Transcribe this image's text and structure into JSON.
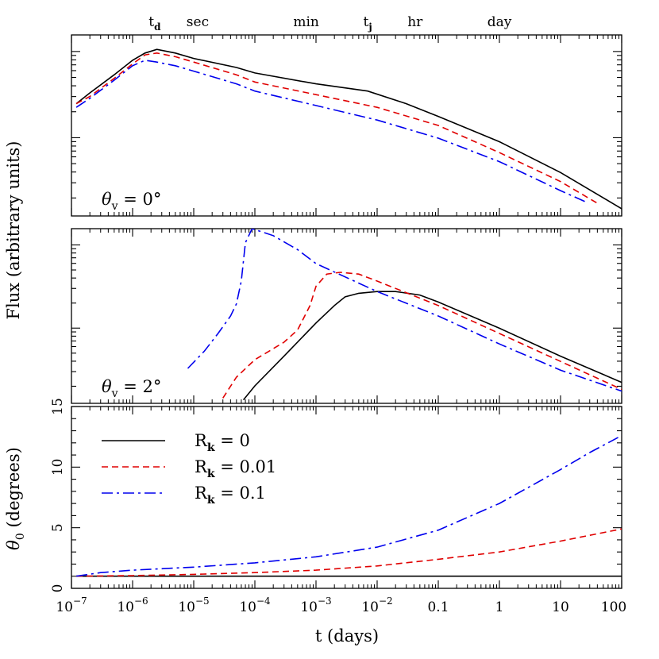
{
  "chart_data": [
    {
      "type": "line",
      "panel": "top",
      "annotation": {
        "theta_symbol": "θ",
        "subscript": "v",
        "text": " =  0°"
      },
      "yscale": "log",
      "ylabel_shared": "Flux (arbitrary units)",
      "xscale": "log",
      "xlim": [
        1e-07,
        100
      ],
      "series": [
        {
          "key": "rk0",
          "color": "#000000",
          "dash": "solid",
          "x": [
            1.2e-07,
            2e-07,
            5e-07,
            1e-06,
            1.6e-06,
            2.5e-06,
            5e-06,
            1e-05,
            5e-05,
            0.0001,
            0.001,
            0.007,
            0.03,
            0.1,
            1,
            10,
            100
          ],
          "y": [
            0.62,
            0.68,
            0.78,
            0.86,
            0.9,
            0.92,
            0.9,
            0.87,
            0.82,
            0.79,
            0.73,
            0.69,
            0.62,
            0.55,
            0.41,
            0.24,
            0.04
          ]
        },
        {
          "key": "rk001",
          "color": "#e00000",
          "dash": "dashed",
          "x": [
            1.2e-07,
            2e-07,
            5e-07,
            1e-06,
            1.6e-06,
            2.5e-06,
            5e-06,
            1e-05,
            5e-05,
            0.0001,
            0.001,
            0.01,
            0.1,
            1,
            10,
            40
          ],
          "y": [
            0.62,
            0.66,
            0.76,
            0.84,
            0.89,
            0.9,
            0.88,
            0.85,
            0.78,
            0.74,
            0.67,
            0.6,
            0.5,
            0.35,
            0.19,
            0.07
          ]
        },
        {
          "key": "rk01",
          "color": "#0000ee",
          "dash": "dashdot",
          "x": [
            1.2e-07,
            2e-07,
            5e-07,
            1e-06,
            1.6e-06,
            2.5e-06,
            5e-06,
            1e-05,
            5e-05,
            0.0001,
            0.001,
            0.01,
            0.1,
            1,
            10,
            25
          ],
          "y": [
            0.6,
            0.65,
            0.75,
            0.83,
            0.86,
            0.85,
            0.83,
            0.8,
            0.73,
            0.69,
            0.61,
            0.53,
            0.43,
            0.3,
            0.14,
            0.08
          ]
        }
      ]
    },
    {
      "type": "line",
      "panel": "middle",
      "annotation": {
        "theta_symbol": "θ",
        "subscript": "v",
        "text": " =  2°"
      },
      "yscale": "log",
      "xscale": "log",
      "xlim": [
        1e-07,
        100
      ],
      "series": [
        {
          "key": "rk0",
          "color": "#000000",
          "dash": "solid",
          "x": [
            6.5e-05,
            0.0001,
            0.0003,
            0.001,
            0.002,
            0.003,
            0.005,
            0.01,
            0.02,
            0.05,
            0.1,
            1,
            10,
            100
          ],
          "y": [
            0.02,
            0.1,
            0.27,
            0.46,
            0.56,
            0.61,
            0.63,
            0.64,
            0.64,
            0.62,
            0.58,
            0.43,
            0.27,
            0.12
          ]
        },
        {
          "key": "rk001",
          "color": "#e00000",
          "dash": "dashed",
          "x": [
            3e-05,
            5e-05,
            0.0001,
            0.0003,
            0.0005,
            0.0008,
            0.001,
            0.0015,
            0.0025,
            0.005,
            0.01,
            0.1,
            1,
            10,
            100
          ],
          "y": [
            0.03,
            0.15,
            0.25,
            0.35,
            0.42,
            0.56,
            0.67,
            0.74,
            0.75,
            0.74,
            0.7,
            0.56,
            0.4,
            0.24,
            0.08
          ]
        },
        {
          "key": "rk01",
          "color": "#0000ee",
          "dash": "dashdot",
          "x": [
            8e-06,
            1.5e-05,
            2.5e-05,
            4e-05,
            5e-05,
            6e-05,
            7e-05,
            9e-05,
            0.0002,
            0.0005,
            0.001,
            0.01,
            0.1,
            1,
            10,
            100
          ],
          "y": [
            0.2,
            0.3,
            0.4,
            0.5,
            0.57,
            0.7,
            0.92,
            1.0,
            0.96,
            0.88,
            0.8,
            0.64,
            0.5,
            0.34,
            0.19,
            0.07
          ]
        }
      ]
    },
    {
      "type": "line",
      "panel": "bottom",
      "ylabel": {
        "symbol": "θ",
        "subscript": "0",
        "text": " (degrees)"
      },
      "xlabel": "t (days)",
      "xscale": "log",
      "xlim": [
        1e-07,
        100
      ],
      "ylim": [
        0,
        15
      ],
      "yticks": [
        0,
        5,
        10,
        15
      ],
      "series": [
        {
          "key": "rk0",
          "color": "#000000",
          "dash": "solid",
          "x": [
            1.2e-07,
            100
          ],
          "y": [
            1,
            1
          ]
        },
        {
          "key": "rk001",
          "color": "#e00000",
          "dash": "dashed",
          "x": [
            1.2e-07,
            1e-06,
            1e-05,
            0.0001,
            0.001,
            0.01,
            0.1,
            1,
            10,
            100
          ],
          "y": [
            1.0,
            1.05,
            1.15,
            1.3,
            1.5,
            1.85,
            2.4,
            3.0,
            3.9,
            4.9
          ]
        },
        {
          "key": "rk01",
          "color": "#0000ee",
          "dash": "dashdot",
          "x": [
            1.2e-07,
            3e-07,
            1e-06,
            1e-05,
            0.0001,
            0.001,
            0.01,
            0.1,
            1,
            10,
            30,
            100
          ],
          "y": [
            1.0,
            1.3,
            1.5,
            1.75,
            2.1,
            2.6,
            3.4,
            4.8,
            7.0,
            9.8,
            11.2,
            12.6
          ]
        }
      ]
    }
  ],
  "x_ticks": [
    {
      "base": "10",
      "exp": "−7",
      "value": 1e-07
    },
    {
      "base": "10",
      "exp": "−6",
      "value": 1e-06
    },
    {
      "base": "10",
      "exp": "−5",
      "value": 1e-05
    },
    {
      "base": "10",
      "exp": "−4",
      "value": 0.0001
    },
    {
      "base": "10",
      "exp": "−3",
      "value": 0.001
    },
    {
      "base": "10",
      "exp": "−2",
      "value": 0.01
    },
    {
      "label": "0.1",
      "value": 0.1
    },
    {
      "label": "1",
      "value": 1
    },
    {
      "label": "10",
      "value": 10
    },
    {
      "label": "100",
      "value": 100
    }
  ],
  "top_labels": [
    {
      "text": "t",
      "sub": "d",
      "value": 2.3e-06
    },
    {
      "text": "sec",
      "value": 1.16e-05
    },
    {
      "text": "min",
      "value": 0.00069
    },
    {
      "text": "t",
      "sub": "j",
      "value": 0.007
    },
    {
      "text": "hr",
      "value": 0.0417
    },
    {
      "text": "day",
      "value": 1
    }
  ],
  "legend": {
    "placement": "top-left of bottom panel",
    "entries": [
      {
        "key": "rk0",
        "symbol": "R",
        "sub": "k",
        "text": "  =  0",
        "color": "#000000",
        "dash": "solid"
      },
      {
        "key": "rk001",
        "symbol": "R",
        "sub": "k",
        "text": "  =  0.01",
        "color": "#e00000",
        "dash": "dashed"
      },
      {
        "key": "rk01",
        "symbol": "R",
        "sub": "k",
        "text": "  =  0.1",
        "color": "#0000ee",
        "dash": "dashdot"
      }
    ]
  }
}
